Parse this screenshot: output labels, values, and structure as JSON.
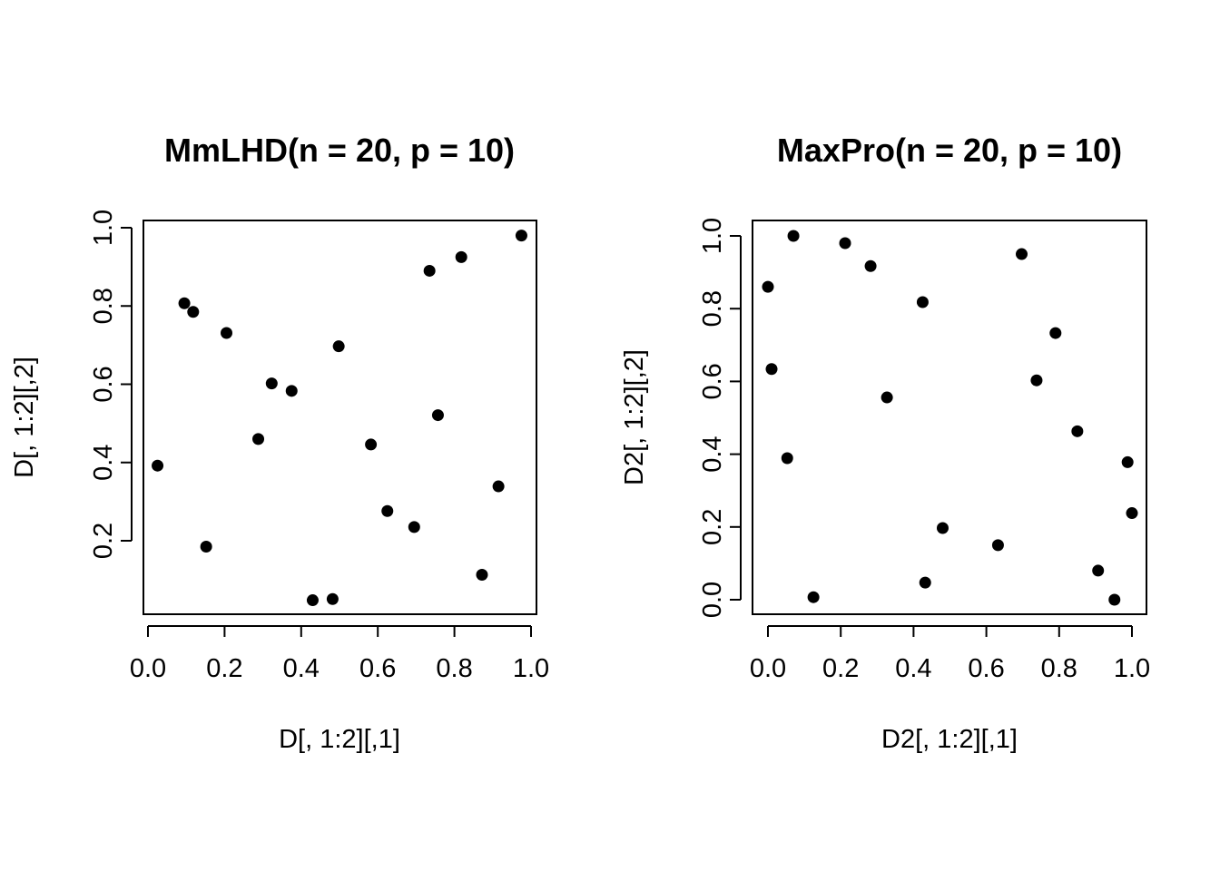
{
  "chart_data": [
    {
      "type": "scatter",
      "title": "MmLHD(n = 20, p = 10)",
      "xlabel": "D[, 1:2][,1]",
      "ylabel": "D[, 1:2][,2]",
      "xlim": [
        0.0,
        1.0
      ],
      "ylim": [
        0.05,
        0.975
      ],
      "xticks": [
        "0.0",
        "0.2",
        "0.4",
        "0.6",
        "0.8",
        "1.0"
      ],
      "yticks": [
        "0.2",
        "0.4",
        "0.6",
        "0.8",
        "1.0"
      ],
      "grid": false,
      "marker_color": "#000000",
      "points": [
        {
          "x": 0.025,
          "y": 0.392
        },
        {
          "x": 0.095,
          "y": 0.807
        },
        {
          "x": 0.118,
          "y": 0.785
        },
        {
          "x": 0.152,
          "y": 0.185
        },
        {
          "x": 0.205,
          "y": 0.731
        },
        {
          "x": 0.288,
          "y": 0.46
        },
        {
          "x": 0.323,
          "y": 0.602
        },
        {
          "x": 0.375,
          "y": 0.583
        },
        {
          "x": 0.43,
          "y": 0.048
        },
        {
          "x": 0.482,
          "y": 0.051
        },
        {
          "x": 0.498,
          "y": 0.697
        },
        {
          "x": 0.582,
          "y": 0.446
        },
        {
          "x": 0.625,
          "y": 0.276
        },
        {
          "x": 0.695,
          "y": 0.235
        },
        {
          "x": 0.735,
          "y": 0.89
        },
        {
          "x": 0.757,
          "y": 0.521
        },
        {
          "x": 0.818,
          "y": 0.925
        },
        {
          "x": 0.872,
          "y": 0.113
        },
        {
          "x": 0.915,
          "y": 0.339
        },
        {
          "x": 0.975,
          "y": 0.98
        }
      ]
    },
    {
      "type": "scatter",
      "title": "MaxPro(n = 20, p = 10)",
      "xlabel": "D2[, 1:2][,1]",
      "ylabel": "D2[, 1:2][,2]",
      "xlim": [
        0.0,
        1.0
      ],
      "ylim": [
        0.0,
        1.0
      ],
      "xticks": [
        "0.0",
        "0.2",
        "0.4",
        "0.6",
        "0.8",
        "1.0"
      ],
      "yticks": [
        "0.0",
        "0.2",
        "0.4",
        "0.6",
        "0.8",
        "1.0"
      ],
      "grid": false,
      "marker_color": "#000000",
      "points": [
        {
          "x": 0.0,
          "y": 0.86
        },
        {
          "x": 0.01,
          "y": 0.634
        },
        {
          "x": 0.053,
          "y": 0.389
        },
        {
          "x": 0.07,
          "y": 1.0
        },
        {
          "x": 0.125,
          "y": 0.007
        },
        {
          "x": 0.212,
          "y": 0.98
        },
        {
          "x": 0.282,
          "y": 0.917
        },
        {
          "x": 0.327,
          "y": 0.556
        },
        {
          "x": 0.425,
          "y": 0.818
        },
        {
          "x": 0.432,
          "y": 0.047
        },
        {
          "x": 0.48,
          "y": 0.197
        },
        {
          "x": 0.632,
          "y": 0.15
        },
        {
          "x": 0.697,
          "y": 0.95
        },
        {
          "x": 0.738,
          "y": 0.603
        },
        {
          "x": 0.79,
          "y": 0.733
        },
        {
          "x": 0.85,
          "y": 0.463
        },
        {
          "x": 0.907,
          "y": 0.08
        },
        {
          "x": 0.952,
          "y": 0.0
        },
        {
          "x": 0.988,
          "y": 0.378
        },
        {
          "x": 1.0,
          "y": 0.238
        }
      ]
    }
  ]
}
